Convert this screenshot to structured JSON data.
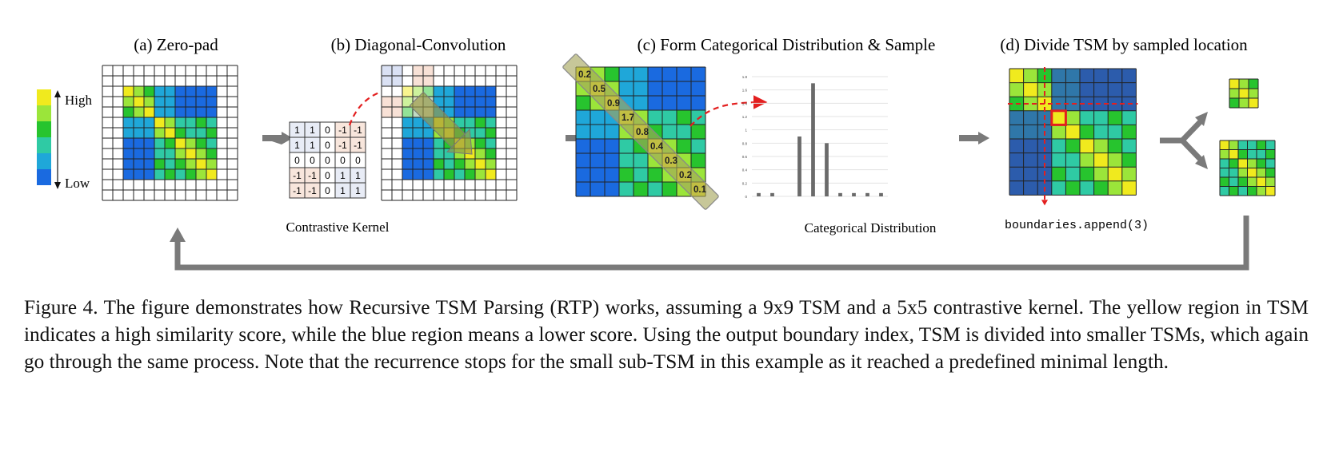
{
  "panels": {
    "a": {
      "title": "(a) Zero-pad"
    },
    "b": {
      "title": "(b) Diagonal-Convolution",
      "kernel_label": "Contrastive Kernel"
    },
    "c": {
      "title": "(c) Form Categorical Distribution & Sample",
      "dist_label": "Categorical Distribution"
    },
    "d": {
      "title": "(d) Divide TSM by sampled location",
      "code_label": "boundaries.append(3)"
    }
  },
  "legend": {
    "high": "High",
    "low": "Low",
    "colors": [
      "#f0ea1e",
      "#9be53a",
      "#27c42e",
      "#2fcaa4",
      "#1fa7d9",
      "#1a6ae0"
    ]
  },
  "tsm": [
    [
      5,
      4,
      3,
      1,
      1,
      0,
      0,
      0,
      0
    ],
    [
      4,
      5,
      4,
      1,
      1,
      0,
      0,
      0,
      0
    ],
    [
      3,
      4,
      5,
      1,
      1,
      0,
      0,
      0,
      0
    ],
    [
      1,
      1,
      1,
      5,
      4,
      2,
      2,
      3,
      2
    ],
    [
      1,
      1,
      1,
      4,
      5,
      3,
      2,
      2,
      3
    ],
    [
      0,
      0,
      0,
      2,
      3,
      5,
      4,
      3,
      2
    ],
    [
      0,
      0,
      0,
      2,
      2,
      4,
      5,
      4,
      3
    ],
    [
      0,
      0,
      0,
      3,
      2,
      3,
      4,
      5,
      4
    ],
    [
      0,
      0,
      0,
      2,
      3,
      2,
      3,
      4,
      5
    ]
  ],
  "kernel": [
    [
      "1",
      "1",
      "0",
      "-1",
      "-1"
    ],
    [
      "1",
      "1",
      "0",
      "-1",
      "-1"
    ],
    [
      "0",
      "0",
      "0",
      "0",
      "0"
    ],
    [
      "-1",
      "-1",
      "0",
      "1",
      "1"
    ],
    [
      "-1",
      "-1",
      "0",
      "1",
      "1"
    ]
  ],
  "diagonal_scores": [
    "0.2",
    "0.5",
    "0.9",
    "1.7",
    "0.8",
    "0.4",
    "0.3",
    "0.2",
    "0.1"
  ],
  "chart_data": {
    "type": "bar",
    "title": "Categorical Distribution",
    "ytick_labels": [
      "0",
      "0.2",
      "0.4",
      "0.6",
      "0.8",
      "1",
      "1.2",
      "1.4",
      "1.6",
      "1.8"
    ],
    "ylim": [
      0,
      1.8
    ],
    "values": [
      0.05,
      0.05,
      0.0,
      0.9,
      1.7,
      0.8,
      0.05,
      0.05,
      0.05,
      0.05
    ],
    "grid": true
  },
  "caption": "Figure 4. The figure demonstrates how Recursive TSM Parsing (RTP) works, assuming a 9x9 TSM and a 5x5 contrastive kernel. The yellow region in TSM indicates a high similarity score, while the blue region means a lower score. Using the output boundary index, TSM is divided into smaller TSMs, which again go through the same process. Note that the recurrence stops for the small sub-TSM in this example as it reached a predefined minimal length."
}
